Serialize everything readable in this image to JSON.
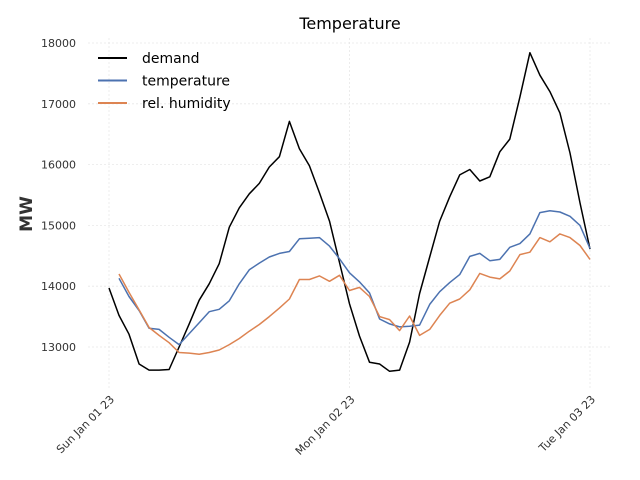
{
  "chart_data": {
    "type": "line",
    "title": "Temperature",
    "xlabel": "",
    "ylabel": "MW",
    "ylim": [
      12400,
      18100
    ],
    "y_ticks": [
      13000,
      14000,
      15000,
      16000,
      17000,
      18000
    ],
    "y_tick_labels": [
      "13000",
      "14000",
      "15000",
      "16000",
      "17000",
      "18000"
    ],
    "x_hours_range": [
      0,
      48
    ],
    "x_ticks": [
      0,
      24,
      48
    ],
    "x_tick_labels": [
      "Sun Jan 01 23",
      "Mon Jan 02 23",
      "Tue Jan 03 23"
    ],
    "legend_position": "upper-left",
    "series": [
      {
        "name": "demand",
        "color": "#000000",
        "x": [
          0,
          1,
          2,
          3,
          4,
          5,
          6,
          7,
          8,
          9,
          10,
          11,
          12,
          13,
          14,
          15,
          16,
          17,
          18,
          19,
          20,
          21,
          22,
          23,
          24,
          25,
          26,
          27,
          28,
          29,
          30,
          31,
          32,
          33,
          34,
          35,
          36,
          37,
          38,
          39,
          40,
          41,
          42,
          43,
          44,
          45,
          46,
          47,
          48
        ],
        "y": [
          13970,
          13520,
          13210,
          12720,
          12620,
          12620,
          12630,
          13000,
          13380,
          13770,
          14040,
          14370,
          14970,
          15290,
          15520,
          15690,
          15960,
          16130,
          16710,
          16260,
          15980,
          15540,
          15070,
          14390,
          13710,
          13180,
          12750,
          12720,
          12600,
          12620,
          13080,
          13880,
          14480,
          15070,
          15470,
          15830,
          15920,
          15730,
          15800,
          16210,
          16420,
          17110,
          17840,
          17470,
          17200,
          16850,
          16190,
          15370,
          14610
        ]
      },
      {
        "name": "temperature",
        "color": "#4c72b0",
        "x": [
          1,
          2,
          3,
          4,
          5,
          6,
          7,
          8,
          9,
          10,
          11,
          12,
          13,
          14,
          15,
          16,
          17,
          18,
          19,
          20,
          21,
          22,
          23,
          24,
          25,
          26,
          27,
          28,
          29,
          30,
          31,
          32,
          33,
          34,
          35,
          36,
          37,
          38,
          39,
          40,
          41,
          42,
          43,
          44,
          45,
          46,
          47,
          48
        ],
        "y": [
          14130,
          13830,
          13600,
          13310,
          13290,
          13160,
          13040,
          13220,
          13400,
          13580,
          13620,
          13760,
          14040,
          14270,
          14380,
          14480,
          14540,
          14570,
          14780,
          14790,
          14800,
          14660,
          14450,
          14220,
          14070,
          13890,
          13460,
          13380,
          13330,
          13340,
          13360,
          13700,
          13910,
          14060,
          14190,
          14490,
          14540,
          14420,
          14440,
          14640,
          14700,
          14860,
          15210,
          15240,
          15220,
          15150,
          15000,
          14620
        ]
      },
      {
        "name": "rel. humidity",
        "color": "#dd8452",
        "x": [
          1,
          2,
          3,
          4,
          5,
          6,
          7,
          8,
          9,
          10,
          11,
          12,
          13,
          14,
          15,
          16,
          17,
          18,
          19,
          20,
          21,
          22,
          23,
          24,
          25,
          26,
          27,
          28,
          29,
          30,
          31,
          32,
          33,
          34,
          35,
          36,
          37,
          38,
          39,
          40,
          41,
          42,
          43,
          44,
          45,
          46,
          47,
          48
        ],
        "y": [
          14200,
          13900,
          13610,
          13320,
          13190,
          13070,
          12910,
          12900,
          12880,
          12910,
          12950,
          13040,
          13140,
          13260,
          13370,
          13500,
          13640,
          13790,
          14110,
          14110,
          14170,
          14080,
          14180,
          13930,
          13980,
          13830,
          13500,
          13450,
          13270,
          13510,
          13190,
          13290,
          13520,
          13720,
          13790,
          13940,
          14210,
          14150,
          14120,
          14250,
          14520,
          14560,
          14800,
          14730,
          14860,
          14800,
          14670,
          14440
        ]
      }
    ]
  }
}
